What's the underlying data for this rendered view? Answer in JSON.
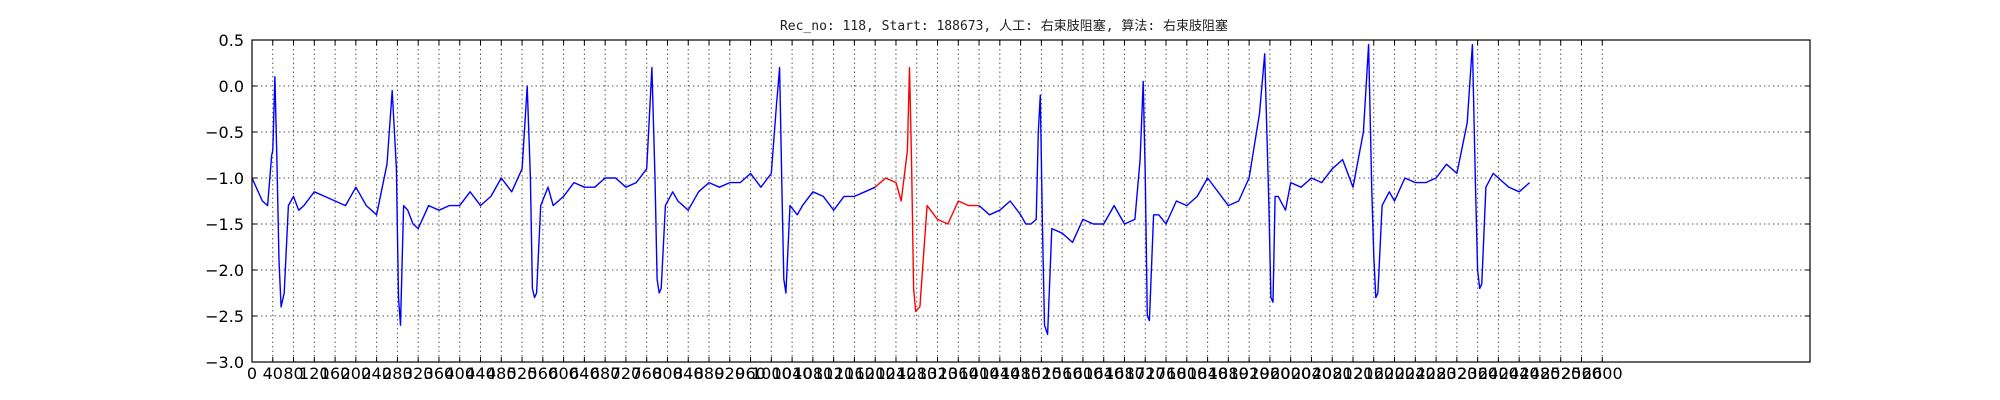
{
  "chart_data": {
    "type": "line",
    "title": "Rec_no: 118, Start: 188673, 人工: 右束肢阻塞, 算法: 右束肢阻塞",
    "xlabel": "",
    "ylabel": "",
    "xlim": [
      0,
      3000
    ],
    "ylim": [
      -3.0,
      0.5
    ],
    "grid": true,
    "yticks": [
      0.5,
      0.0,
      -0.5,
      -1.0,
      -1.5,
      -2.0,
      -2.5,
      -3.0
    ],
    "ytick_labels": [
      "0.5",
      "0.0",
      "−0.5",
      "−1.0",
      "−1.5",
      "−2.0",
      "−2.5",
      "−3.0"
    ],
    "xticks": [
      0,
      40,
      80,
      120,
      160,
      200,
      240,
      280,
      320,
      360,
      400,
      440,
      480,
      520,
      560,
      600,
      640,
      680,
      720,
      760,
      800,
      840,
      880,
      920,
      960,
      1000,
      1040,
      1080,
      1120,
      1160,
      1200,
      1240,
      1280,
      1320,
      1360,
      1400,
      1440,
      1480,
      1520,
      1560,
      1600,
      1640,
      1680,
      1720,
      1760,
      1800,
      1840,
      1880,
      1920,
      1960,
      2000,
      2040,
      2080,
      2120,
      2160,
      2200,
      2240,
      2280,
      2320,
      2360,
      2400,
      2440,
      2480,
      2520,
      2560,
      2600
    ],
    "beat_series_color": "#0000ff",
    "highlight_color": "#ff0000",
    "highlight_range": [
      1200,
      1400
    ],
    "series": [
      {
        "color": "#0000ff",
        "x": [
          0,
          20,
          30,
          38,
          40,
          44,
          48,
          52,
          56,
          62,
          70,
          80,
          90,
          100,
          120,
          140,
          160,
          180,
          200,
          220,
          240,
          260,
          270,
          278,
          282,
          286,
          292,
          300,
          310,
          320,
          340,
          360,
          380,
          400,
          420,
          440,
          460,
          480,
          500,
          520,
          530,
          536,
          540,
          544,
          548,
          556,
          570,
          580,
          600,
          620,
          640,
          660,
          680,
          700,
          720,
          740,
          760,
          770,
          776,
          780,
          784,
          788,
          796,
          810,
          820,
          840,
          860,
          880,
          900,
          920,
          940,
          960,
          980,
          1000,
          1010,
          1016,
          1020,
          1024,
          1028,
          1036,
          1050,
          1060,
          1080,
          1100,
          1120,
          1140,
          1160,
          1180,
          1200
        ],
        "y": [
          -1.0,
          -1.25,
          -1.3,
          -0.75,
          -0.7,
          0.1,
          -0.8,
          -1.9,
          -2.4,
          -2.25,
          -1.3,
          -1.2,
          -1.35,
          -1.3,
          -1.15,
          -1.2,
          -1.25,
          -1.3,
          -1.1,
          -1.3,
          -1.4,
          -0.85,
          -0.05,
          -0.9,
          -2.3,
          -2.6,
          -1.3,
          -1.35,
          -1.5,
          -1.55,
          -1.3,
          -1.35,
          -1.3,
          -1.3,
          -1.15,
          -1.3,
          -1.2,
          -1.0,
          -1.15,
          -0.9,
          0.0,
          -1.0,
          -2.2,
          -2.3,
          -2.25,
          -1.3,
          -1.1,
          -1.3,
          -1.2,
          -1.05,
          -1.1,
          -1.1,
          -1.0,
          -1.0,
          -1.1,
          -1.05,
          -0.9,
          0.2,
          -1.0,
          -2.1,
          -2.25,
          -2.2,
          -1.3,
          -1.15,
          -1.25,
          -1.35,
          -1.15,
          -1.05,
          -1.1,
          -1.05,
          -1.05,
          -0.95,
          -1.1,
          -0.95,
          -0.2,
          0.2,
          -1.0,
          -2.1,
          -2.25,
          -1.3,
          -1.4,
          -1.3,
          -1.15,
          -1.2,
          -1.35,
          -1.2,
          -1.2,
          -1.15,
          -1.1
        ]
      },
      {
        "color": "#ff0000",
        "x": [
          1200,
          1220,
          1240,
          1250,
          1262,
          1266,
          1270,
          1274,
          1278,
          1286,
          1300,
          1320,
          1340,
          1360,
          1380,
          1400
        ],
        "y": [
          -1.1,
          -1.0,
          -1.05,
          -1.25,
          -0.7,
          0.2,
          -0.85,
          -2.2,
          -2.45,
          -2.4,
          -1.3,
          -1.45,
          -1.5,
          -1.25,
          -1.3,
          -1.3
        ]
      },
      {
        "color": "#0000ff",
        "x": [
          1400,
          1420,
          1440,
          1460,
          1480,
          1490,
          1500,
          1510,
          1514,
          1518,
          1522,
          1526,
          1532,
          1540,
          1560,
          1580,
          1600,
          1620,
          1640,
          1660,
          1680,
          1700,
          1710,
          1716,
          1720,
          1724,
          1728,
          1736,
          1746,
          1760,
          1780,
          1800,
          1820,
          1840,
          1860,
          1880,
          1900,
          1920,
          1940,
          1950,
          1958,
          1962,
          1966,
          1970,
          1976,
          1990,
          2000,
          2020,
          2040,
          2060,
          2080,
          2100,
          2120,
          2140,
          2150,
          2156,
          2160,
          2164,
          2168,
          2176,
          2190,
          2200,
          2220,
          2240,
          2260,
          2280,
          2300,
          2320,
          2340,
          2350,
          2356,
          2360,
          2364,
          2368,
          2376,
          2390,
          2400,
          2420,
          2440,
          2460
        ],
        "y": [
          -1.3,
          -1.4,
          -1.35,
          -1.25,
          -1.4,
          -1.5,
          -1.5,
          -1.45,
          -0.5,
          -0.1,
          -1.5,
          -2.6,
          -2.7,
          -1.55,
          -1.6,
          -1.7,
          -1.45,
          -1.5,
          -1.5,
          -1.3,
          -1.5,
          -1.45,
          -0.8,
          0.05,
          -1.0,
          -2.5,
          -2.55,
          -1.4,
          -1.4,
          -1.5,
          -1.25,
          -1.3,
          -1.2,
          -1.0,
          -1.15,
          -1.3,
          -1.25,
          -1.0,
          -0.3,
          0.35,
          -1.3,
          -2.3,
          -2.35,
          -1.2,
          -1.2,
          -1.35,
          -1.05,
          -1.1,
          -1.0,
          -1.05,
          -0.9,
          -0.8,
          -1.1,
          -0.5,
          0.45,
          -1.1,
          -1.85,
          -2.3,
          -2.25,
          -1.3,
          -1.15,
          -1.25,
          -1.0,
          -1.05,
          -1.05,
          -1.0,
          -0.85,
          -0.95,
          -0.4,
          0.45,
          -1.1,
          -2.0,
          -2.2,
          -2.15,
          -1.1,
          -0.95,
          -1.0,
          -1.1,
          -1.15,
          -1.05
        ]
      }
    ]
  }
}
